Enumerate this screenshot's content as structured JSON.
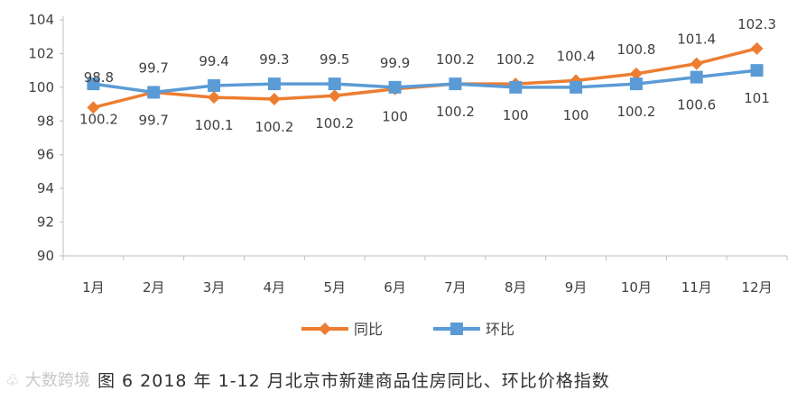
{
  "chart_data": {
    "type": "line",
    "categories": [
      "1月",
      "2月",
      "3月",
      "4月",
      "5月",
      "6月",
      "7月",
      "8月",
      "9月",
      "10月",
      "11月",
      "12月"
    ],
    "series": [
      {
        "name": "同比",
        "color": "#ED7D31",
        "marker": "diamond",
        "values": [
          98.8,
          99.7,
          99.4,
          99.3,
          99.5,
          99.9,
          100.2,
          100.2,
          100.4,
          100.8,
          101.4,
          102.3
        ]
      },
      {
        "name": "环比",
        "color": "#5B9BD5",
        "marker": "square",
        "values": [
          100.2,
          99.7,
          100.1,
          100.2,
          100.2,
          100,
          100.2,
          100,
          100,
          100.2,
          100.6,
          101
        ]
      }
    ],
    "yticks": [
      "90",
      "92",
      "94",
      "96",
      "98",
      "100",
      "102",
      "104"
    ],
    "ylim": [
      90,
      104
    ],
    "grid": false,
    "legend_position": "bottom"
  },
  "caption": "图 6   2018 年 1-12 月北京市新建商品住房同比、环比价格指数",
  "watermark": "大数跨境"
}
